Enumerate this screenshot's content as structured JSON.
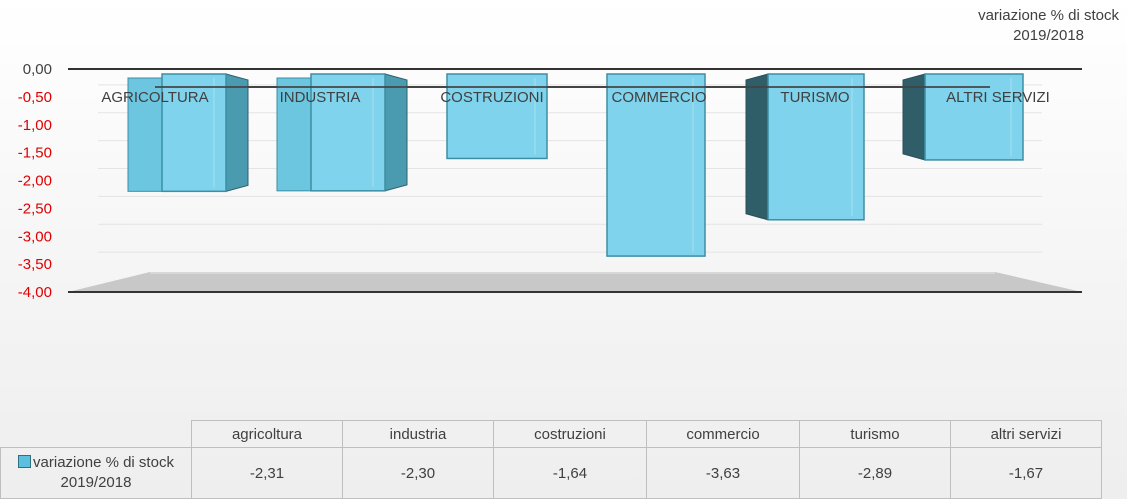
{
  "chart_data": {
    "type": "bar",
    "categories": [
      "agricoltura",
      "industria",
      "costruzioni",
      "commercio",
      "turismo",
      "altri servizi"
    ],
    "axis_category_labels": [
      "AGRICOLTURA",
      "INDUSTRIA",
      "COSTRUZIONI",
      "COMMERCIO",
      "TURISMO",
      "ALTRI SERVIZI"
    ],
    "series": [
      {
        "name": "variazione % di stock 2019/2018",
        "values": [
          -2.31,
          -2.3,
          -1.64,
          -3.63,
          -2.89,
          -1.67
        ],
        "value_labels": [
          "-2,31",
          "-2,30",
          "-1,64",
          "-3,63",
          "-2,89",
          "-1,67"
        ]
      }
    ],
    "ylim": [
      -4.0,
      0.0
    ],
    "yticks": [
      "0,00",
      "-0,50",
      "-1,00",
      "-1,50",
      "-2,00",
      "-2,50",
      "-3,00",
      "-3,50",
      "-4,00"
    ],
    "ytick_values": [
      0,
      -0.5,
      -1,
      -1.5,
      -2,
      -2.5,
      -3,
      -3.5,
      -4
    ],
    "grid": true,
    "legend": {
      "placement": "top-right",
      "lines": [
        "variazione % di stock",
        "2019/2018"
      ]
    },
    "data_table": {
      "series_label_lines": [
        "variazione % di stock",
        "2019/2018"
      ]
    },
    "colors": {
      "bar_front": "#7fd3ec",
      "bar_side_light": "#4a9bb0",
      "bar_side_dark": "#2f5d68",
      "negative_tick": "#e00000",
      "zero_tick": "#404040"
    }
  }
}
